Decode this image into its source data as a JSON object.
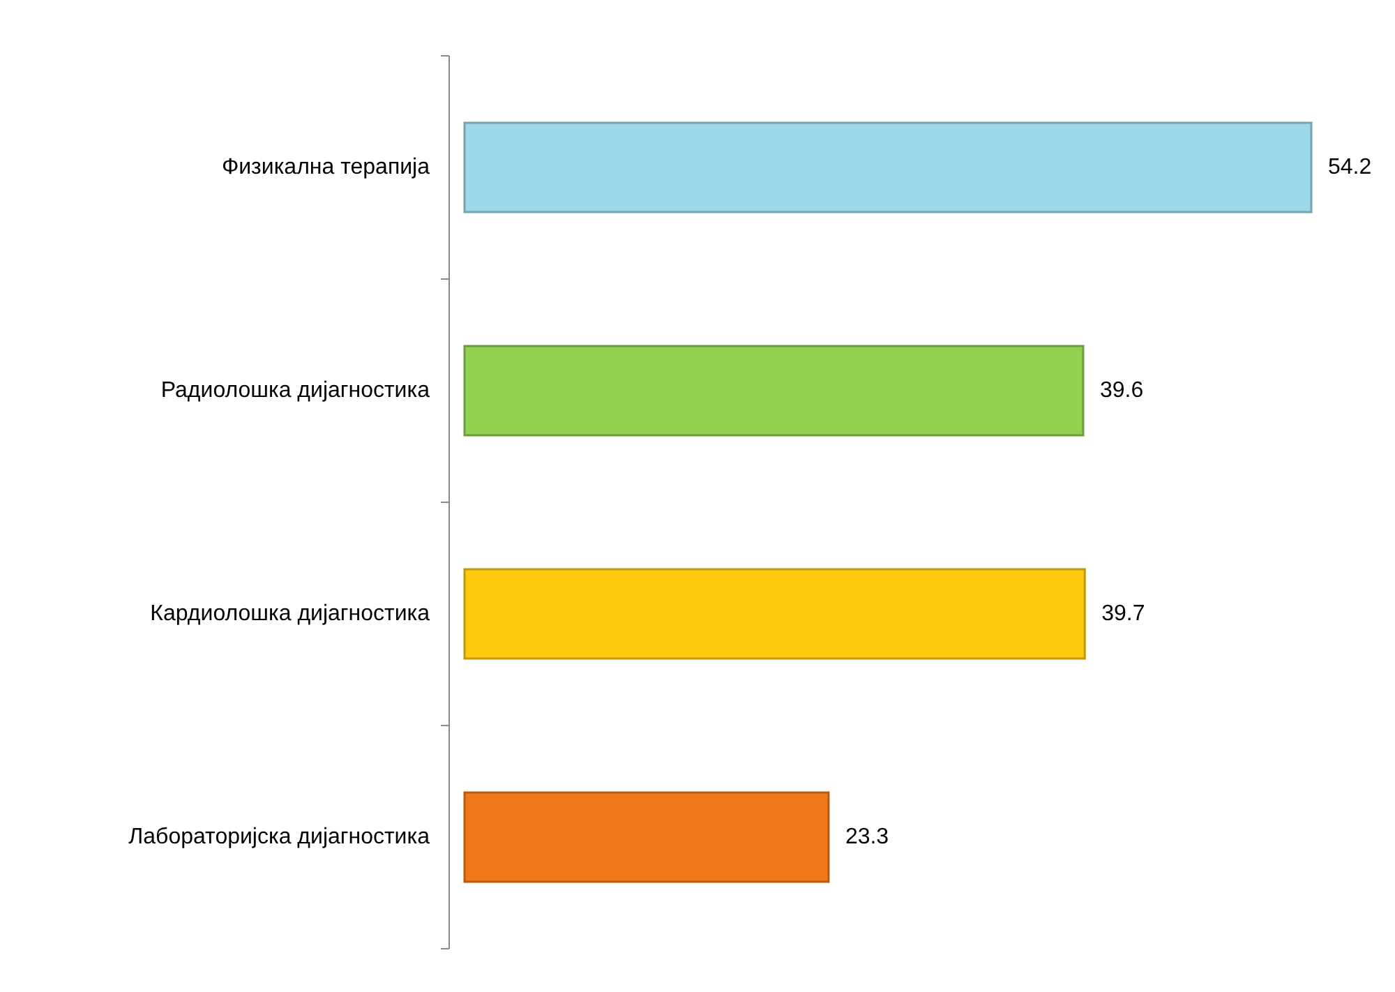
{
  "chart_data": {
    "type": "bar",
    "orientation": "horizontal",
    "categories": [
      "Физикална терапија",
      "Радиолошка дијагностика",
      "Кардиолошка дијагностика",
      "Лабораторијска дијагностика"
    ],
    "values": [
      54.2,
      39.6,
      39.7,
      23.3
    ],
    "colors": [
      "#9dd9e8",
      "#92d050",
      "#ffc90e",
      "#f07818"
    ],
    "data_labels": true
  }
}
